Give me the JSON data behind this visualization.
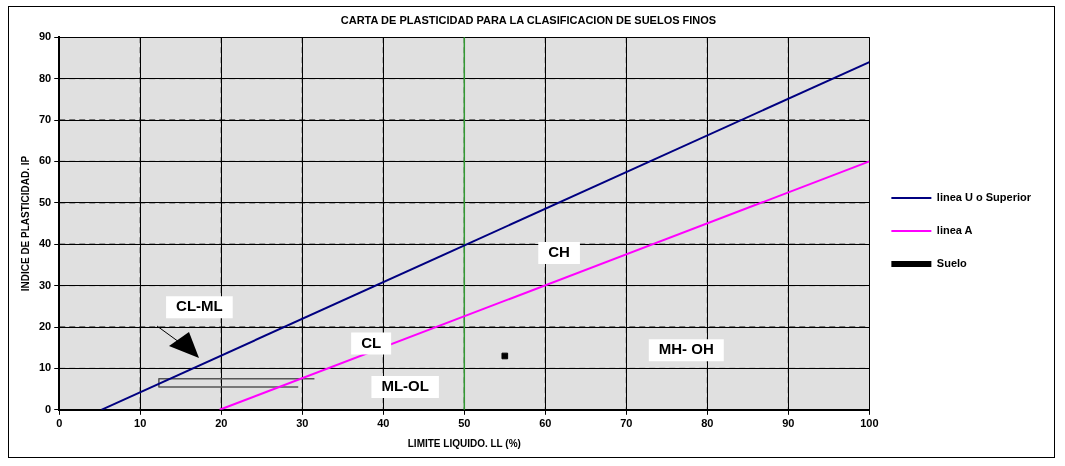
{
  "chart_data": {
    "type": "line",
    "title": "CARTA DE PLASTICIDAD PARA LA CLASIFICACION DE SUELOS FINOS",
    "xlabel": "LIMITE LIQUIDO. LL (%)",
    "ylabel": "INDICE DE PLASTICIDAD. IP",
    "xlim": [
      0,
      100
    ],
    "xticks": [
      0,
      10,
      20,
      30,
      40,
      50,
      60,
      70,
      80,
      90,
      100
    ],
    "ylim": [
      0,
      90
    ],
    "yticks": [
      0,
      10,
      20,
      30,
      40,
      50,
      60,
      70,
      80,
      90
    ],
    "series": [
      {
        "name": "linea U o Superior",
        "color": "#000080",
        "x": [
          5.2,
          100
        ],
        "values": [
          0,
          84
        ]
      },
      {
        "name": "linea A",
        "color": "#ff00ff",
        "x": [
          19.8,
          100
        ],
        "values": [
          0,
          60
        ]
      },
      {
        "color": "#555555",
        "x": [
          29.5,
          12.3,
          12.3,
          31.5
        ],
        "values": [
          5.5,
          5.5,
          7.5,
          7.5
        ]
      },
      {
        "name": "Suelo",
        "type": "scatter",
        "marker": "square",
        "color": "#000000",
        "x": [
          55
        ],
        "values": [
          13
        ]
      }
    ],
    "ref_lines": [
      {
        "axis": "x",
        "value": 50,
        "color": "#339933"
      }
    ],
    "annotations": [
      "CL-ML",
      "CH",
      "CL",
      "MH- OH",
      "ML-OL"
    ],
    "grid": true,
    "legend": "right",
    "line_style": "solid"
  }
}
